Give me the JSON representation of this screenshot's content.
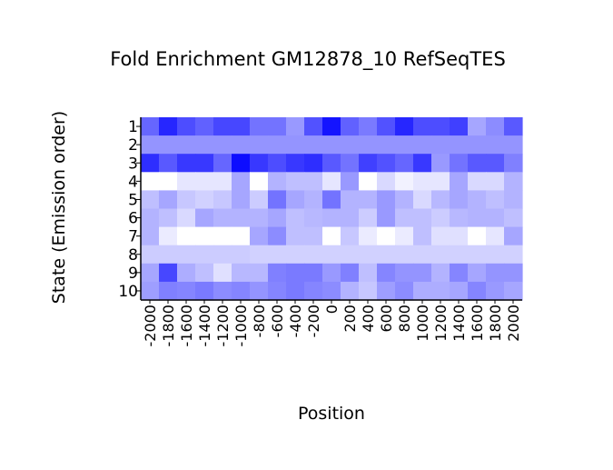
{
  "chart_data": {
    "type": "heatmap",
    "title": "Fold Enrichment GM12878_10 RefSeqTES",
    "xlabel": "Position",
    "ylabel": "State (Emission order)",
    "rows": [
      "1",
      "2",
      "3",
      "4",
      "5",
      "6",
      "7",
      "8",
      "9",
      "10"
    ],
    "columns": [
      "-2000",
      "-1800",
      "-1600",
      "-1400",
      "-1200",
      "-1000",
      "-800",
      "-600",
      "-400",
      "-200",
      "0",
      "200",
      "400",
      "600",
      "800",
      "1000",
      "1200",
      "1400",
      "1600",
      "1800",
      "2000"
    ],
    "values": [
      [
        0.6,
        0.85,
        0.7,
        0.62,
        0.72,
        0.72,
        0.55,
        0.55,
        0.4,
        0.68,
        0.92,
        0.62,
        0.52,
        0.68,
        0.85,
        0.7,
        0.7,
        0.75,
        0.35,
        0.45,
        0.65
      ],
      [
        0.42,
        0.42,
        0.42,
        0.42,
        0.42,
        0.42,
        0.42,
        0.42,
        0.42,
        0.42,
        0.42,
        0.42,
        0.42,
        0.42,
        0.42,
        0.42,
        0.42,
        0.42,
        0.42,
        0.42,
        0.42
      ],
      [
        0.82,
        0.65,
        0.78,
        0.78,
        0.6,
        0.95,
        0.78,
        0.7,
        0.78,
        0.82,
        0.65,
        0.55,
        0.75,
        0.68,
        0.6,
        0.78,
        0.4,
        0.55,
        0.65,
        0.65,
        0.5
      ],
      [
        0.0,
        0.0,
        0.1,
        0.1,
        0.1,
        0.35,
        0.0,
        0.3,
        0.25,
        0.25,
        0.1,
        0.4,
        0.0,
        0.15,
        0.05,
        0.1,
        0.1,
        0.35,
        0.15,
        0.15,
        0.3
      ],
      [
        0.25,
        0.35,
        0.22,
        0.18,
        0.22,
        0.35,
        0.2,
        0.55,
        0.35,
        0.3,
        0.55,
        0.3,
        0.3,
        0.4,
        0.3,
        0.15,
        0.28,
        0.35,
        0.3,
        0.25,
        0.3
      ],
      [
        0.3,
        0.25,
        0.15,
        0.35,
        0.3,
        0.3,
        0.3,
        0.35,
        0.25,
        0.28,
        0.3,
        0.3,
        0.2,
        0.4,
        0.25,
        0.25,
        0.2,
        0.28,
        0.3,
        0.3,
        0.25
      ],
      [
        0.3,
        0.08,
        0.0,
        0.0,
        0.0,
        0.0,
        0.35,
        0.45,
        0.25,
        0.25,
        0.0,
        0.22,
        0.08,
        0.0,
        0.08,
        0.25,
        0.12,
        0.12,
        0.0,
        0.1,
        0.35
      ],
      [
        0.2,
        0.2,
        0.2,
        0.2,
        0.2,
        0.2,
        0.18,
        0.18,
        0.18,
        0.18,
        0.18,
        0.18,
        0.18,
        0.18,
        0.18,
        0.18,
        0.18,
        0.18,
        0.18,
        0.18,
        0.18
      ],
      [
        0.35,
        0.72,
        0.32,
        0.25,
        0.12,
        0.28,
        0.28,
        0.5,
        0.52,
        0.52,
        0.4,
        0.5,
        0.25,
        0.48,
        0.42,
        0.42,
        0.3,
        0.48,
        0.35,
        0.42,
        0.42
      ],
      [
        0.38,
        0.5,
        0.48,
        0.52,
        0.45,
        0.48,
        0.42,
        0.48,
        0.52,
        0.48,
        0.45,
        0.3,
        0.22,
        0.38,
        0.45,
        0.32,
        0.32,
        0.35,
        0.48,
        0.4,
        0.35
      ]
    ],
    "color_scale": {
      "low": "#ffffff",
      "high": "#0000ff"
    },
    "legend": "none",
    "grid": false
  }
}
